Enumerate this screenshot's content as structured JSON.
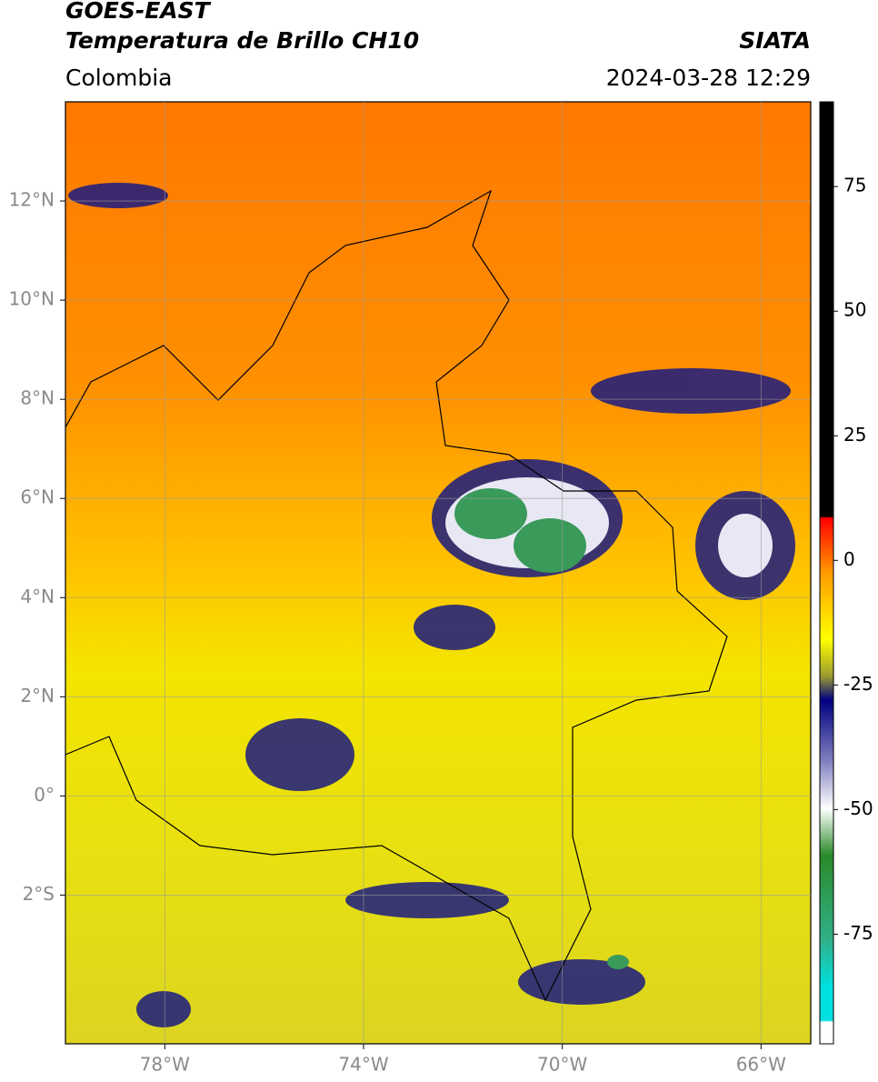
{
  "header": {
    "title": "GOES-EAST",
    "subtitle": "Temperatura de Brillo CH10",
    "source": "SIATA",
    "region": "Colombia",
    "timestamp": "2024-03-28 12:29"
  },
  "chart_data": {
    "type": "map",
    "xlim": [
      -80,
      -65
    ],
    "ylim": [
      -5,
      14
    ],
    "xticks": [
      {
        "value": -78,
        "label": "78°W"
      },
      {
        "value": -74,
        "label": "74°W"
      },
      {
        "value": -70,
        "label": "70°W"
      },
      {
        "value": -66,
        "label": "66°W"
      }
    ],
    "yticks": [
      {
        "value": 12,
        "label": "12°N"
      },
      {
        "value": 10,
        "label": "10°N"
      },
      {
        "value": 8,
        "label": "8°N"
      },
      {
        "value": 6,
        "label": "6°N"
      },
      {
        "value": 4,
        "label": "4°N"
      },
      {
        "value": 2,
        "label": "2°N"
      },
      {
        "value": 0,
        "label": "0°"
      },
      {
        "value": -2,
        "label": "2°S"
      }
    ],
    "grid": true,
    "colorbar": {
      "lim": [
        -97,
        92
      ],
      "ticks": [
        75,
        50,
        25,
        0,
        -25,
        -50,
        -75
      ]
    }
  }
}
